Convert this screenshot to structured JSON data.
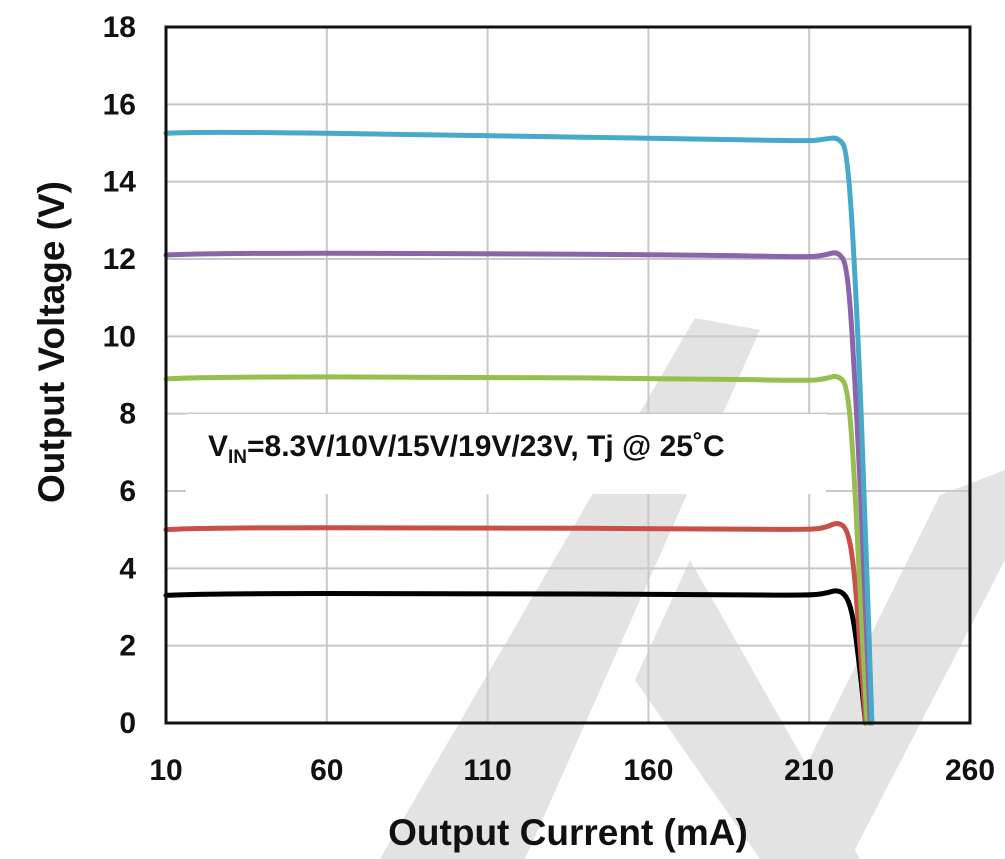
{
  "chart_data": {
    "type": "line",
    "xlabel": "Output Current  (mA)",
    "ylabel": "Output  Voltage  (V)",
    "xlim": [
      10,
      260
    ],
    "ylim": [
      0,
      18
    ],
    "x_ticks": [
      10,
      60,
      110,
      160,
      210,
      260
    ],
    "y_ticks": [
      0,
      2,
      4,
      6,
      8,
      10,
      12,
      14,
      16,
      18
    ],
    "grid": true,
    "annotation": {
      "prefix": "V",
      "subscript": "IN",
      "text": "=8.3V/10V/15V/19V/23V, Tj @ 25˚C"
    },
    "colors": [
      "#000000",
      "#c8504b",
      "#96be50",
      "#8c64aa",
      "#46aac8"
    ],
    "series": [
      {
        "color": "#000000",
        "x": [
          10,
          20,
          100,
          180,
          210,
          215,
          219,
          222,
          224,
          226,
          227.5
        ],
        "y": [
          3.3,
          3.35,
          3.35,
          3.32,
          3.3,
          3.35,
          3.45,
          3.25,
          2.6,
          1.2,
          0
        ]
      },
      {
        "color": "#c8504b",
        "x": [
          10,
          20,
          100,
          180,
          210,
          215,
          219,
          222,
          224,
          226,
          227.5
        ],
        "y": [
          5.0,
          5.05,
          5.05,
          5.02,
          5.0,
          5.05,
          5.2,
          5.0,
          4.0,
          1.8,
          0
        ]
      },
      {
        "color": "#96be50",
        "x": [
          10,
          20,
          100,
          180,
          210,
          215,
          219,
          222,
          224,
          226,
          228
        ],
        "y": [
          8.9,
          8.95,
          8.95,
          8.9,
          8.85,
          8.9,
          9.0,
          8.7,
          6.5,
          3.0,
          0
        ]
      },
      {
        "color": "#8c64aa",
        "x": [
          10,
          20,
          100,
          180,
          210,
          215,
          219,
          222,
          224.5,
          227,
          229
        ],
        "y": [
          12.1,
          12.15,
          12.15,
          12.1,
          12.05,
          12.1,
          12.2,
          11.8,
          8.5,
          4.0,
          0
        ]
      },
      {
        "color": "#46aac8",
        "x": [
          10,
          20,
          100,
          180,
          210,
          215,
          219,
          222,
          225,
          227.5,
          229.5
        ],
        "y": [
          15.25,
          15.3,
          15.2,
          15.1,
          15.05,
          15.1,
          15.15,
          14.8,
          10.5,
          5.0,
          0
        ]
      }
    ]
  }
}
